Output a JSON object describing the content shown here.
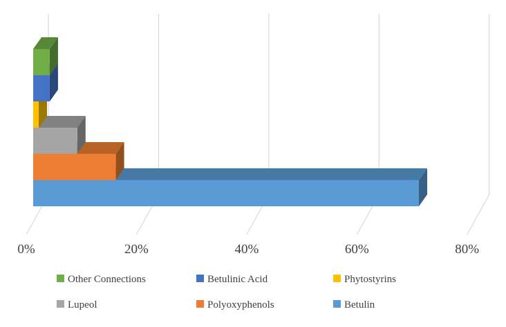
{
  "chart_data": {
    "type": "bar",
    "orientation": "horizontal",
    "stacked": false,
    "style": "3d",
    "xlim": [
      0,
      80
    ],
    "x_ticks": [
      "0%",
      "20%",
      "40%",
      "60%",
      "80%"
    ],
    "grid": true,
    "legend_position": "bottom",
    "series": [
      {
        "name": "Betulin",
        "value": 70,
        "color": "#5b9bd5"
      },
      {
        "name": "Polyoxyphenols",
        "value": 15,
        "color": "#ed7d31"
      },
      {
        "name": "Lupeol",
        "value": 8,
        "color": "#a5a5a5"
      },
      {
        "name": "Phytostyrins",
        "value": 1,
        "color": "#ffc000"
      },
      {
        "name": "Betulinic Acid",
        "value": 3,
        "color": "#4472c4"
      },
      {
        "name": "Other Connections",
        "value": 3,
        "color": "#70ad47"
      }
    ],
    "legend": [
      {
        "label": "Other Connections",
        "color": "#70ad47"
      },
      {
        "label": "Betulinic Acid",
        "color": "#4472c4"
      },
      {
        "label": "Phytostyrins",
        "color": "#ffc000"
      },
      {
        "label": "Lupeol",
        "color": "#a5a5a5"
      },
      {
        "label": "Polyoxyphenols",
        "color": "#ed7d31"
      },
      {
        "label": "Betulin",
        "color": "#5b9bd5"
      }
    ]
  }
}
